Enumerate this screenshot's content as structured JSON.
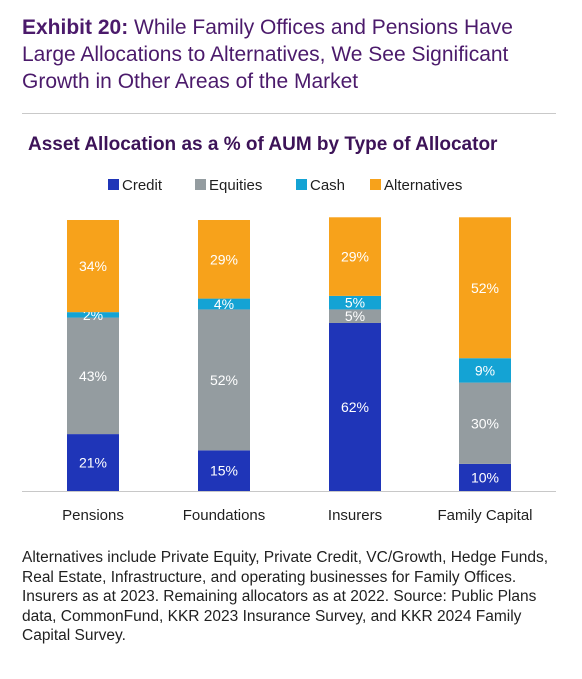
{
  "header": {
    "exhibit_label": "Exhibit 20:",
    "exhibit_title": "While Family Offices and Pensions Have Large Allocations to Alternatives, We See Significant Growth in Other Areas of the Market"
  },
  "chart_data": {
    "type": "bar",
    "stacked": true,
    "title": "Asset Allocation as a % of AUM by Type of Allocator",
    "categories": [
      "Pensions",
      "Foundations",
      "Insurers",
      "Family Capital"
    ],
    "series": [
      {
        "name": "Credit",
        "color": "#1f35b8",
        "values": [
          21,
          15,
          62,
          10
        ],
        "labels": [
          "21%",
          "15%",
          "62%",
          "10%"
        ]
      },
      {
        "name": "Equities",
        "color": "#949ca0",
        "values": [
          43,
          52,
          5,
          30
        ],
        "labels": [
          "43%",
          "52%",
          "5%",
          "30%"
        ]
      },
      {
        "name": "Cash",
        "color": "#14a3d4",
        "values": [
          2,
          4,
          5,
          9
        ],
        "labels": [
          "2%",
          "4%",
          "5%",
          "9%"
        ]
      },
      {
        "name": "Alternatives",
        "color": "#f7a21b",
        "values": [
          34,
          29,
          29,
          52
        ],
        "labels": [
          "34%",
          "29%",
          "29%",
          "52%"
        ]
      }
    ],
    "ylim": [
      0,
      100
    ],
    "legend_position": "top",
    "grid": false
  },
  "footnote": "Alternatives include Private Equity, Private Credit, VC/Growth, Hedge Funds, Real Estate, Infrastructure, and operating businesses for Family Offices. Insurers as at 2023. Remaining allocators as at 2022. Source: Public Plans data, CommonFund, KKR 2023 Insurance Survey, and KKR 2024 Family Capital Survey."
}
